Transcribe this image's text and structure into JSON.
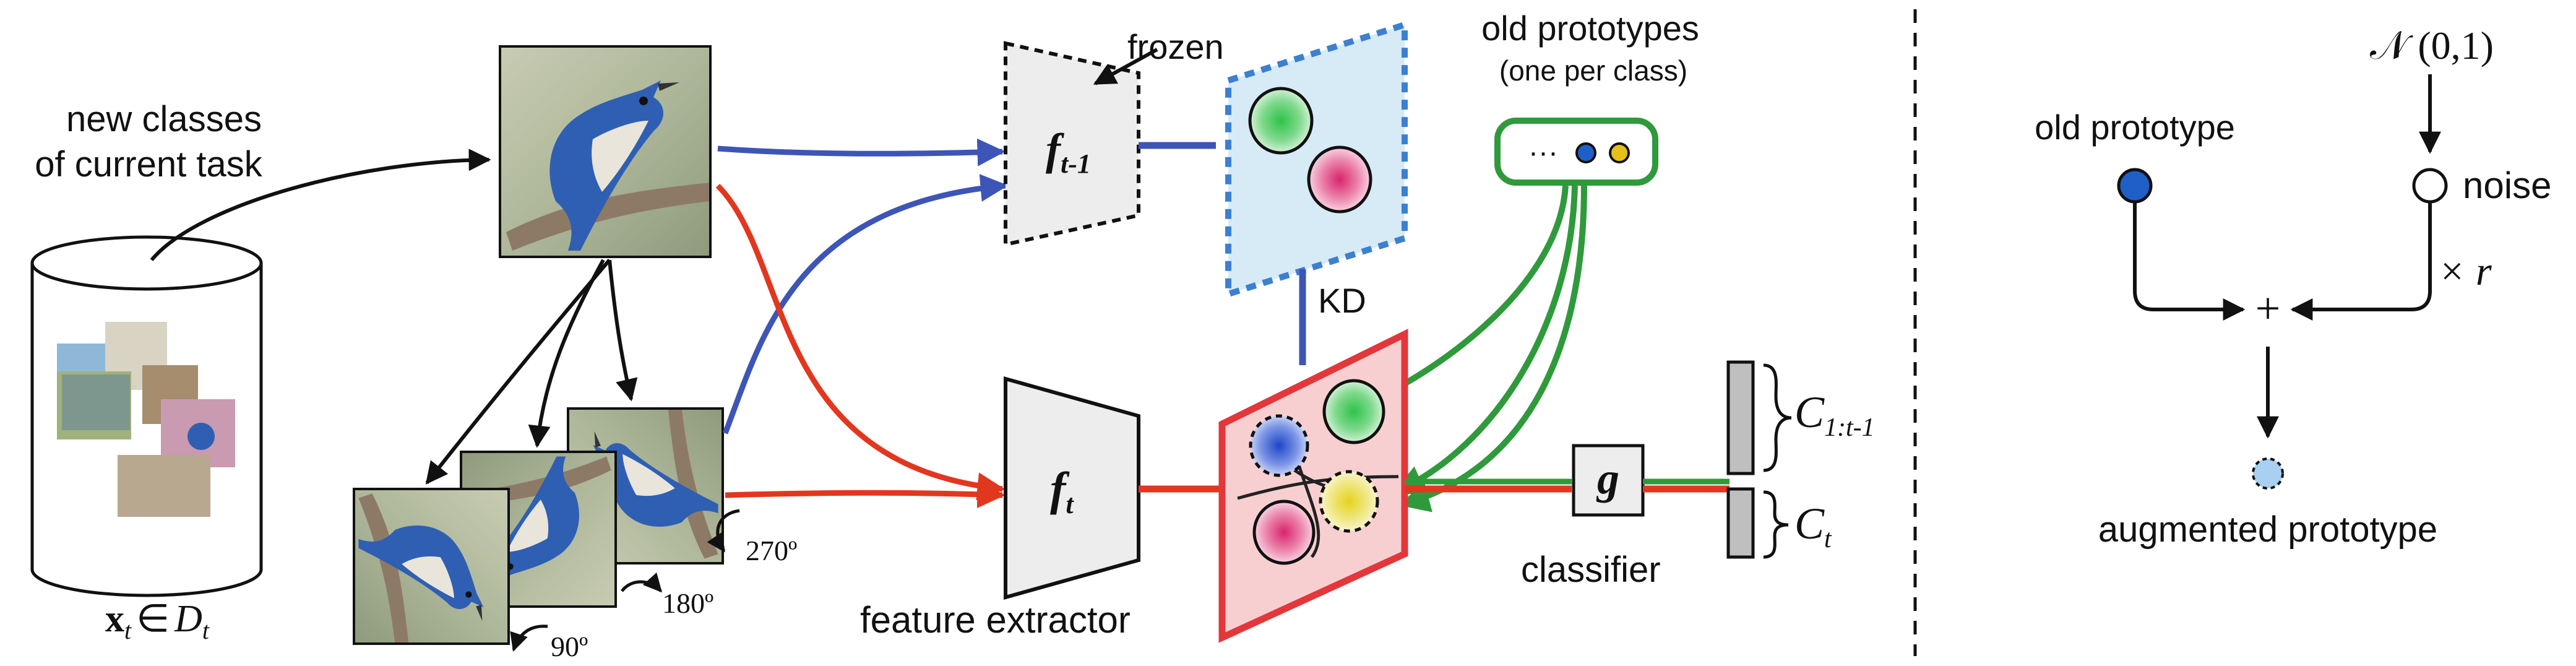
{
  "left": {
    "dataset_caption": [
      "new classes",
      "of current task"
    ],
    "dataset_symbol": {
      "x": "x",
      "sub": "t",
      "in": "∈",
      "D": "D",
      "Dsub": "t"
    },
    "rotations": [
      "90º",
      "180º",
      "270º"
    ],
    "frozen_label": "frozen",
    "frozen_model": {
      "f": "f",
      "sub": "t-1"
    },
    "current_model": {
      "f": "f",
      "sub": "t"
    },
    "feature_extractor_label": "feature extractor",
    "old_prototypes_title": "old prototypes",
    "old_prototypes_subtitle": "(one per class)",
    "prototype_store_dots": "···",
    "kd_label": "KD",
    "classifier_symbol": "g",
    "classifier_label": "classifier",
    "head_old": {
      "C": "C",
      "sub": "1:t-1"
    },
    "head_new": {
      "C": "C",
      "sub": "t"
    }
  },
  "right": {
    "noise_source": "𝒩 (0,1)",
    "old_prototype_label": "old prototype",
    "noise_label": "noise",
    "scale_label": "× r",
    "plus_sign": "+",
    "augmented_label": "augmented prototype"
  },
  "colors": {
    "blue_path": "#3d55b6",
    "red_path": "#e2371f",
    "green_path": "#2f9a3b",
    "frozen_space_fill": "#d6ebf6",
    "frozen_space_border": "#3d7fd0",
    "current_space_fill": "#f8cfd0",
    "current_space_border": "#e3373b",
    "old_prototype_dot": "#1f5fc8",
    "augmented_dot": "#a9d0f0"
  }
}
